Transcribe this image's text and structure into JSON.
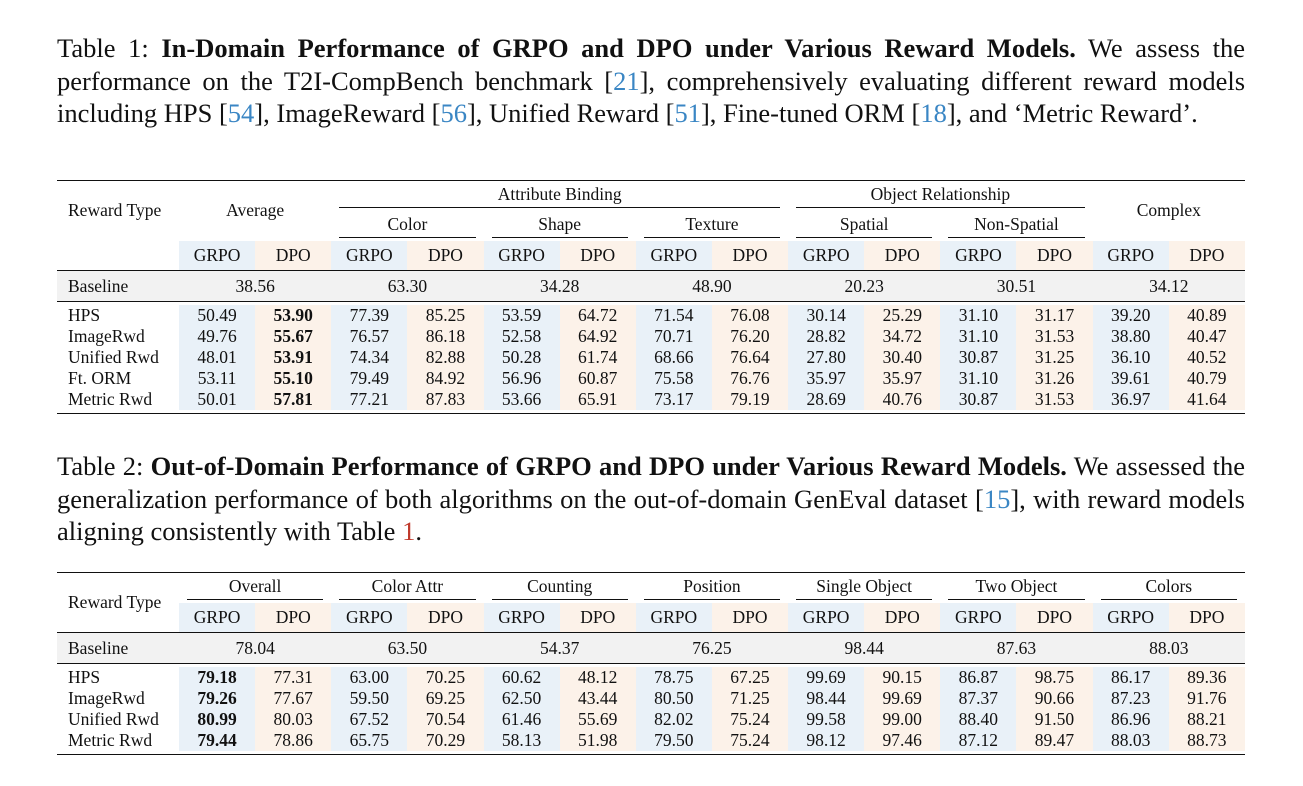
{
  "table1": {
    "caption_label": "Table 1:",
    "caption_title": "In-Domain Performance of GRPO and DPO under Various Reward Models.",
    "caption_text_a": " We assess the performance on the T2I-CompBench benchmark [",
    "ref_a": "21",
    "caption_text_b": "], comprehensively evaluating different reward models including HPS [",
    "ref_b": "54",
    "caption_text_c": "], ImageReward [",
    "ref_c": "56",
    "caption_text_d": "], Unified Reward [",
    "ref_d": "51",
    "caption_text_e": "], Fine-tuned ORM [",
    "ref_e": "18",
    "caption_text_f": "], and ‘Metric Reward’.",
    "header_reward_type": "Reward Type",
    "header_average": "Average",
    "header_attribute_binding": "Attribute Binding",
    "header_object_relationship": "Object Relationship",
    "header_complex": "Complex",
    "sub_color": "Color",
    "sub_shape": "Shape",
    "sub_texture": "Texture",
    "sub_spatial": "Spatial",
    "sub_non_spatial": "Non-Spatial",
    "grpo": "GRPO",
    "dpo": "DPO",
    "baseline": {
      "label": "Baseline",
      "values": [
        "38.56",
        "63.30",
        "34.28",
        "48.90",
        "20.23",
        "30.51",
        "34.12"
      ]
    },
    "rows": [
      {
        "label": "HPS",
        "values": [
          "50.49",
          "53.90",
          "77.39",
          "85.25",
          "53.59",
          "64.72",
          "71.54",
          "76.08",
          "30.14",
          "25.29",
          "31.10",
          "31.17",
          "39.20",
          "40.89"
        ]
      },
      {
        "label": "ImageRwd",
        "values": [
          "49.76",
          "55.67",
          "76.57",
          "86.18",
          "52.58",
          "64.92",
          "70.71",
          "76.20",
          "28.82",
          "34.72",
          "31.10",
          "31.53",
          "38.80",
          "40.47"
        ]
      },
      {
        "label": "Unified Rwd",
        "values": [
          "48.01",
          "53.91",
          "74.34",
          "82.88",
          "50.28",
          "61.74",
          "68.66",
          "76.64",
          "27.80",
          "30.40",
          "30.87",
          "31.25",
          "36.10",
          "40.52"
        ]
      },
      {
        "label": "Ft. ORM",
        "values": [
          "53.11",
          "55.10",
          "79.49",
          "84.92",
          "56.96",
          "60.87",
          "75.58",
          "76.76",
          "35.97",
          "35.97",
          "31.10",
          "31.26",
          "39.61",
          "40.79"
        ]
      },
      {
        "label": "Metric Rwd",
        "values": [
          "50.01",
          "57.81",
          "77.21",
          "87.83",
          "53.66",
          "65.91",
          "73.17",
          "79.19",
          "28.69",
          "40.76",
          "30.87",
          "31.53",
          "36.97",
          "41.64"
        ]
      }
    ]
  },
  "table2": {
    "caption_label": "Table 2:",
    "caption_title": "Out-of-Domain Performance of GRPO and DPO under Various Reward Models.",
    "caption_text_a": " We assessed the generalization performance of both algorithms on the out-of-domain GenEval dataset [",
    "ref_a": "15",
    "caption_text_b": "], with reward models aligning consistently with Table ",
    "ref_b": "1",
    "caption_text_c": ".",
    "header_reward_type": "Reward Type",
    "headers": [
      "Overall",
      "Color Attr",
      "Counting",
      "Position",
      "Single Object",
      "Two Object",
      "Colors"
    ],
    "grpo": "GRPO",
    "dpo": "DPO",
    "baseline": {
      "label": "Baseline",
      "values": [
        "78.04",
        "63.50",
        "54.37",
        "76.25",
        "98.44",
        "87.63",
        "88.03"
      ]
    },
    "rows": [
      {
        "label": "HPS",
        "values": [
          "79.18",
          "77.31",
          "63.00",
          "70.25",
          "60.62",
          "48.12",
          "78.75",
          "67.25",
          "99.69",
          "90.15",
          "86.87",
          "98.75",
          "86.17",
          "89.36"
        ]
      },
      {
        "label": "ImageRwd",
        "values": [
          "79.26",
          "77.67",
          "59.50",
          "69.25",
          "62.50",
          "43.44",
          "80.50",
          "71.25",
          "98.44",
          "99.69",
          "87.37",
          "90.66",
          "87.23",
          "91.76"
        ]
      },
      {
        "label": "Unified Rwd",
        "values": [
          "80.99",
          "80.03",
          "67.52",
          "70.54",
          "61.46",
          "55.69",
          "82.02",
          "75.24",
          "99.58",
          "99.00",
          "88.40",
          "91.50",
          "86.96",
          "88.21"
        ]
      },
      {
        "label": "Metric Rwd",
        "values": [
          "79.44",
          "78.86",
          "65.75",
          "70.29",
          "58.13",
          "51.98",
          "79.50",
          "75.24",
          "98.12",
          "97.46",
          "87.12",
          "89.47",
          "88.03",
          "88.73"
        ]
      }
    ]
  }
}
